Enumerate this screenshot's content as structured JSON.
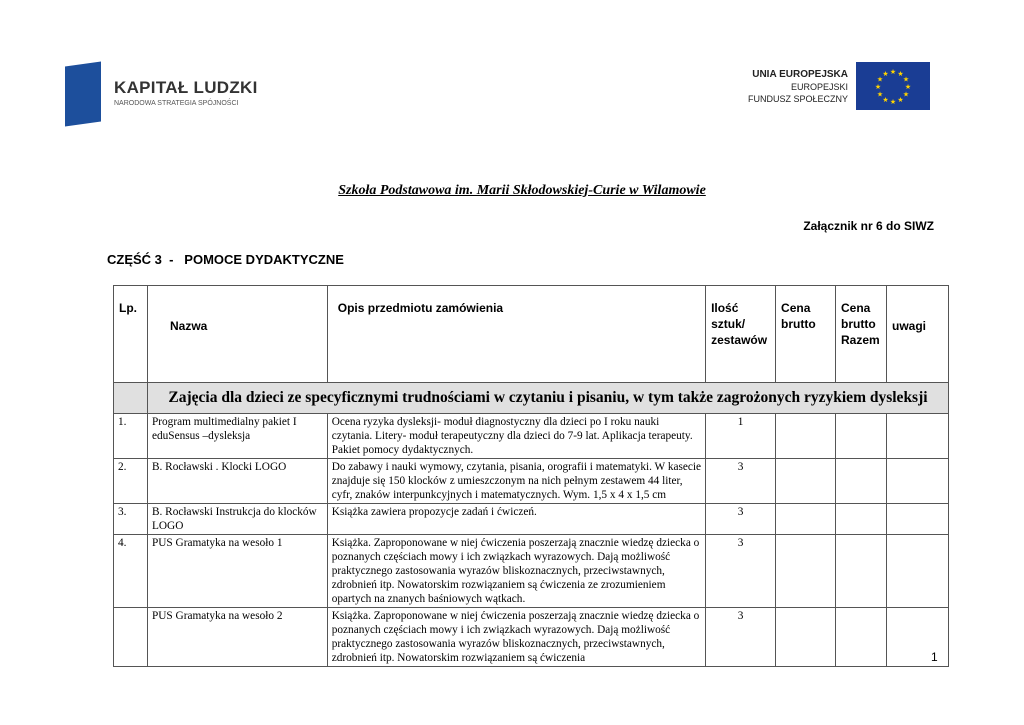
{
  "logos": {
    "left": {
      "title": "KAPITAŁ LUDZKI",
      "subtitle": "NARODOWA STRATEGIA SPÓJNOŚCI"
    },
    "right": {
      "line1": "UNIA EUROPEJSKA",
      "line2": "EUROPEJSKI",
      "line3": "FUNDUSZ SPOŁECZNY"
    }
  },
  "title": "Szkoła Podstawowa im. Marii Skłodowskiej-Curie w Wilamowie",
  "attachment": "Załącznik nr 6 do SIWZ",
  "section_heading": "CZĘŚĆ 3  -   POMOCE DYDAKTYCZNE",
  "table": {
    "headers": {
      "lp": "Lp.",
      "nazwa": "Nazwa",
      "opis": "Opis przedmiotu zamówienia",
      "ilosc": "Ilość sztuk/ zestawów",
      "cena": "Cena brutto",
      "razem": "Cena brutto Razem",
      "uwagi": "uwagi"
    },
    "section": "Zajęcia dla dzieci ze specyficznymi trudnościami w czytaniu i pisaniu, w tym także zagrożonych ryzykiem dysleksji",
    "rows": [
      {
        "lp": "1.",
        "nazwa": "Program multimedialny pakiet I eduSensus –dysleksja",
        "opis": "Ocena ryzyka dysleksji- moduł diagnostyczny dla dzieci po I roku nauki czytania. Litery- moduł terapeutyczny dla dzieci do 7-9 lat. Aplikacja terapeuty. Pakiet pomocy dydaktycznych.",
        "ilosc": "1"
      },
      {
        "lp": "2.",
        "nazwa": "B. Rocławski . Klocki LOGO",
        "opis": "Do zabawy i nauki wymowy, czytania, pisania, orografii i matematyki. W kasecie znajduje się 150 klocków z umieszczonym na nich pełnym zestawem 44 liter, cyfr, znaków interpunkcyjnych i matematycznych. Wym. 1,5 x 4 x 1,5 cm",
        "ilosc": "3"
      },
      {
        "lp": "3.",
        "nazwa": "B. Rocławski Instrukcja do klocków LOGO",
        "opis": "Książka zawiera propozycje zadań i ćwiczeń.",
        "ilosc": "3"
      },
      {
        "lp": "4.",
        "nazwa": "PUS Gramatyka na wesoło 1",
        "opis": "Książka. Zaproponowane w niej ćwiczenia poszerzają znacznie wiedzę dziecka o poznanych częściach mowy i ich związkach wyrazowych. Dają możliwość praktycznego zastosowania wyrazów bliskoznacznych, przeciwstawnych, zdrobnień itp. Nowatorskim rozwiązaniem są ćwiczenia ze zrozumieniem opartych na znanych baśniowych wątkach.",
        "ilosc": "3"
      },
      {
        "lp": "",
        "nazwa": "PUS Gramatyka na wesoło 2",
        "opis": "Książka. Zaproponowane w niej ćwiczenia poszerzają znacznie wiedzę dziecka o poznanych częściach mowy i ich związkach wyrazowych. Dają możliwość praktycznego zastosowania wyrazów bliskoznacznych, przeciwstawnych, zdrobnień itp. Nowatorskim rozwiązaniem są ćwiczenia",
        "ilosc": "3"
      }
    ]
  },
  "page_number": "1"
}
